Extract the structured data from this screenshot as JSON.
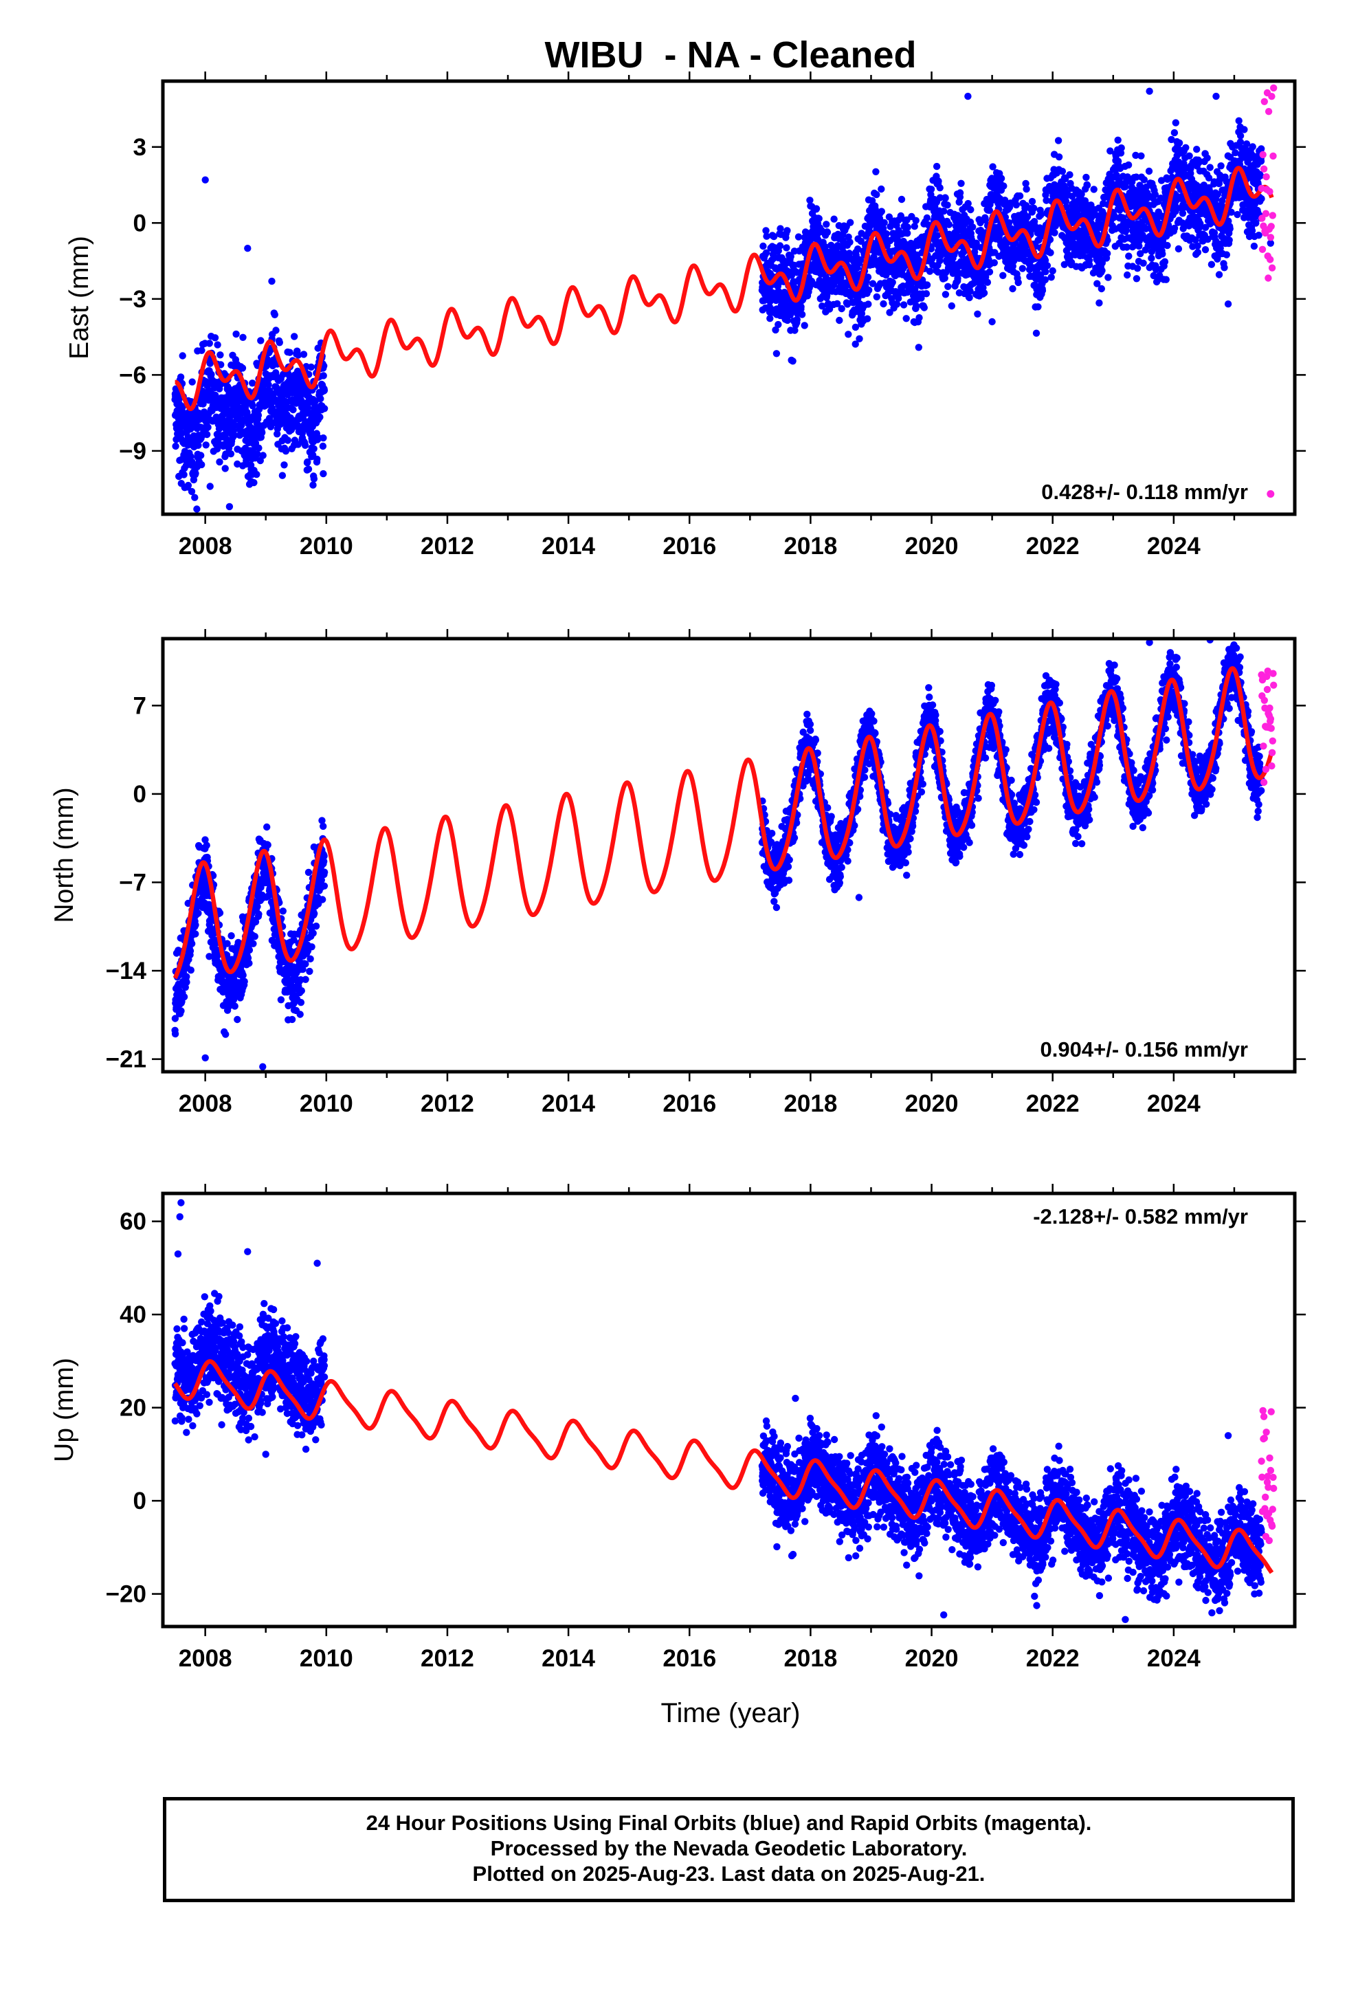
{
  "chart_data": {
    "type": "scatter",
    "title": "WIBU  - NA - Cleaned",
    "xlabel": "Time (year)",
    "xlim": [
      2007.3,
      2026.0
    ],
    "xticks": [
      2008,
      2010,
      2012,
      2014,
      2016,
      2018,
      2020,
      2022,
      2024
    ],
    "colors": {
      "final": "#0000ff",
      "rapid": "#ff22dd",
      "model": "#ff1010"
    },
    "series_labels": {
      "final": "Final Orbits (blue)",
      "rapid": "Rapid Orbits (magenta)"
    },
    "panels": [
      {
        "id": "east",
        "ylabel": "East (mm)",
        "ylim": [
          -11.5,
          5.6
        ],
        "yticks": [
          3,
          0,
          -3,
          -6,
          -9
        ],
        "ytick_labels": [
          "3",
          "0",
          "−3",
          "−6",
          "−9"
        ],
        "rate_text": "0.428+/- 0.118 mm/yr",
        "rate_position": "bottom-right",
        "model": {
          "ref_year": 2017.0,
          "offset": -2.35,
          "rate": 0.428,
          "annual_amp": 0.65,
          "annual_phase": 1.0,
          "semiannual_amp": 0.55,
          "semiannual_phase": 0.5
        },
        "final_segments": [
          {
            "start": 2007.5,
            "end": 2009.97,
            "scatter": 1.1,
            "offset": -1.4
          },
          {
            "start": 2017.2,
            "end": 2025.45,
            "scatter": 0.95,
            "offset": 0.0
          }
        ],
        "rapid": {
          "start": 2025.45,
          "end": 2025.65,
          "min": -2.2,
          "max": 5.4
        },
        "outliers": [
          [
            2008.0,
            1.7
          ],
          [
            2008.08,
            -10.4
          ],
          [
            2008.4,
            -11.2
          ],
          [
            2008.7,
            -1.0
          ],
          [
            2009.1,
            -2.3
          ],
          [
            2009.95,
            -9.9
          ],
          [
            2021.0,
            -3.9
          ],
          [
            2020.6,
            5.0
          ],
          [
            2023.6,
            5.2
          ],
          [
            2024.7,
            5.0
          ],
          [
            2024.9,
            -3.2
          ],
          [
            2025.6,
            -0.8
          ]
        ]
      },
      {
        "id": "north",
        "ylabel": "North (mm)",
        "ylim": [
          -22.0,
          12.3
        ],
        "yticks": [
          7,
          0,
          -7,
          -14,
          -21
        ],
        "ytick_labels": [
          "7",
          "0",
          "−7",
          "−14",
          "−21"
        ],
        "rate_text": "0.904+/- 0.156 mm/yr",
        "rate_position": "bottom-right",
        "model": {
          "ref_year": 2017.0,
          "offset": -2.2,
          "rate": 0.904,
          "annual_amp": 4.5,
          "annual_phase": -0.3,
          "semiannual_amp": 0.5,
          "semiannual_phase": 0.0
        },
        "final_segments": [
          {
            "start": 2007.5,
            "end": 2009.97,
            "scatter": 1.6,
            "offset": -1.2
          },
          {
            "start": 2017.2,
            "end": 2025.45,
            "scatter": 1.2,
            "offset": 0.0
          }
        ],
        "rapid": {
          "start": 2025.45,
          "end": 2025.65,
          "min": 0.8,
          "max": 9.8
        },
        "outliers": [
          [
            2008.95,
            -21.6
          ],
          [
            2008.0,
            -20.9
          ],
          [
            2018.8,
            -8.2
          ],
          [
            2023.6,
            12.0
          ],
          [
            2024.6,
            12.2
          ],
          [
            2024.2,
            4.2
          ],
          [
            2019.8,
            3.2
          ],
          [
            2025.0,
            10.8
          ]
        ]
      },
      {
        "id": "up",
        "ylabel": "Up (mm)",
        "ylim": [
          -27.0,
          66.0
        ],
        "yticks": [
          60,
          40,
          20,
          0,
          -20
        ],
        "ytick_labels": [
          "60",
          "40",
          "20",
          "0",
          "−20"
        ],
        "rate_text": "-2.128+/- 0.582 mm/yr",
        "rate_position": "top-right",
        "model": {
          "ref_year": 2017.0,
          "offset": 6.5,
          "rate": -2.128,
          "annual_amp": 4.0,
          "annual_phase": 0.9,
          "semiannual_amp": 1.0,
          "semiannual_phase": 0.3
        },
        "final_segments": [
          {
            "start": 2007.5,
            "end": 2009.97,
            "scatter": 5.0,
            "offset": 4.0
          },
          {
            "start": 2017.2,
            "end": 2025.45,
            "scatter": 4.6,
            "offset": 0.0
          }
        ],
        "rapid": {
          "start": 2025.45,
          "end": 2025.65,
          "min": -14.0,
          "max": 22.0
        },
        "outliers": [
          [
            2007.6,
            64.0
          ],
          [
            2007.58,
            61.0
          ],
          [
            2007.55,
            53.0
          ],
          [
            2008.7,
            53.5
          ],
          [
            2009.85,
            51.0
          ],
          [
            2009.0,
            10.0
          ],
          [
            2020.2,
            -24.5
          ],
          [
            2023.2,
            -25.5
          ],
          [
            2023.4,
            -19.0
          ],
          [
            2021.7,
            -20.5
          ],
          [
            2024.9,
            14.0
          ],
          [
            2017.75,
            22.0
          ]
        ]
      }
    ]
  },
  "footer": {
    "line1": "24 Hour Positions Using Final Orbits (blue) and Rapid Orbits (magenta).",
    "line2": "Processed by the Nevada Geodetic Laboratory.",
    "line3": "Plotted on 2025-Aug-23. Last data on 2025-Aug-21."
  }
}
